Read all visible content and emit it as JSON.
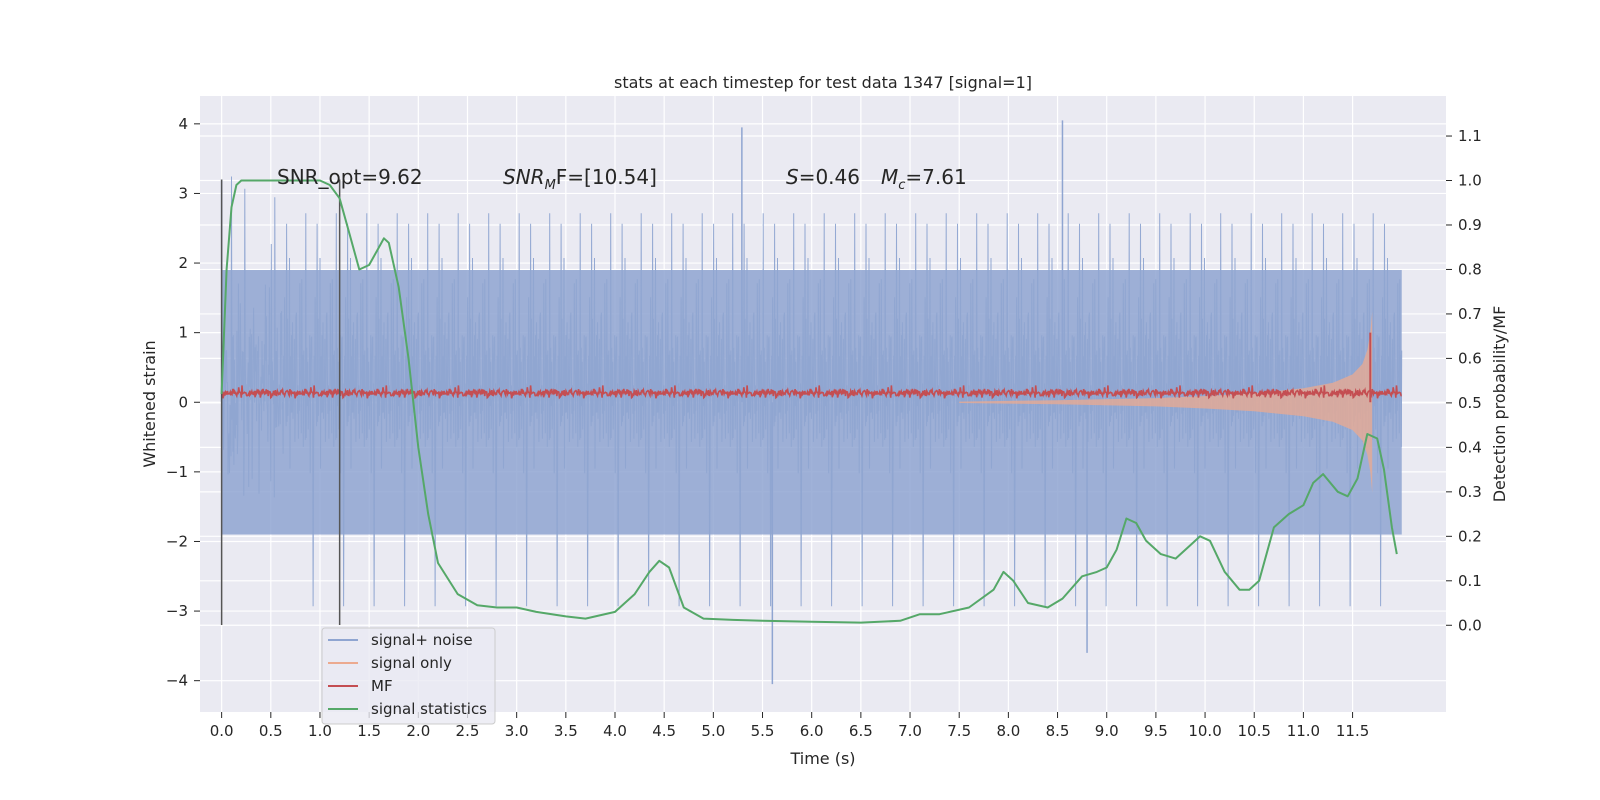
{
  "chart_data": {
    "type": "line",
    "title": "stats at each timestep for test data 1347 [signal=1]",
    "xlabel": "Time (s)",
    "ylabel_left": "Whitened strain",
    "ylabel_right": "Detection probability/MF",
    "xlim": [
      -0.22,
      12.45
    ],
    "ylim_left": [
      -4.45,
      4.4
    ],
    "ylim_right": [
      -0.195,
      1.19
    ],
    "x_ticks": [
      "0.0",
      "0.5",
      "1.0",
      "1.5",
      "2.0",
      "2.5",
      "3.0",
      "3.5",
      "4.0",
      "4.5",
      "5.0",
      "5.5",
      "6.0",
      "6.5",
      "7.0",
      "7.5",
      "8.0",
      "8.5",
      "9.0",
      "9.5",
      "10.0",
      "10.5",
      "11.0",
      "11.5"
    ],
    "y_left_ticks": [
      "4",
      "3",
      "2",
      "1",
      "0",
      "−1",
      "−2",
      "−3",
      "−4"
    ],
    "y_right_ticks": [
      "1.1",
      "1.0",
      "0.9",
      "0.8",
      "0.7",
      "0.6",
      "0.5",
      "0.4",
      "0.3",
      "0.2",
      "0.1",
      "0.0"
    ],
    "grid": true,
    "legend": {
      "placement": "lower-left",
      "entries": [
        {
          "label": "signal+ noise",
          "color": "#8fa5d1"
        },
        {
          "label": "signal only",
          "color": "#ecaa8f"
        },
        {
          "label": "MF",
          "color": "#c44e52"
        },
        {
          "label": "signal statistics",
          "color": "#55a868"
        }
      ]
    },
    "annotations": {
      "snr_opt": "SNR_opt=9.62",
      "snr_mf_base": "SNR",
      "snr_mf_sub": "M",
      "snr_mf_rest": "F=[10.54]",
      "s_base": "S",
      "s_value": "=0.46",
      "mc_base": "M",
      "mc_sub": "c",
      "mc_value": "=7.61"
    },
    "vertical_markers": [
      0.0,
      1.2
    ],
    "series": [
      {
        "name": "signal+ noise",
        "axis": "left",
        "color": "#8fa5d1",
        "x_range": [
          0.0,
          12.0
        ],
        "band": [
          -1.9,
          1.9
        ],
        "peak_examples": [
          [
            0.0,
            3.2
          ],
          [
            5.29,
            3.95
          ],
          [
            8.55,
            4.05
          ],
          [
            5.6,
            -4.05
          ],
          [
            8.8,
            -3.6
          ]
        ]
      },
      {
        "name": "signal only",
        "axis": "left",
        "color": "#ecaa8f",
        "x": [
          7.5,
          8.5,
          9.5,
          10.0,
          10.5,
          11.0,
          11.3,
          11.5,
          11.6,
          11.65,
          11.68,
          11.7
        ],
        "amplitude": [
          0.01,
          0.03,
          0.06,
          0.09,
          0.13,
          0.2,
          0.28,
          0.4,
          0.55,
          0.75,
          1.0,
          1.3
        ]
      },
      {
        "name": "MF",
        "axis": "left",
        "color": "#c44e52",
        "x_range": [
          0.0,
          12.0
        ],
        "mean": 0.12,
        "spike": [
          11.68,
          1.0
        ]
      },
      {
        "name": "signal statistics",
        "axis": "right",
        "color": "#55a868",
        "x": [
          0.0,
          0.05,
          0.1,
          0.15,
          0.2,
          0.5,
          0.8,
          1.0,
          1.1,
          1.2,
          1.3,
          1.4,
          1.5,
          1.6,
          1.65,
          1.7,
          1.8,
          1.9,
          2.0,
          2.1,
          2.2,
          2.4,
          2.6,
          2.8,
          3.0,
          3.2,
          3.5,
          3.7,
          4.0,
          4.2,
          4.35,
          4.45,
          4.55,
          4.7,
          4.9,
          5.2,
          5.5,
          6.0,
          6.5,
          6.9,
          7.1,
          7.3,
          7.6,
          7.85,
          7.95,
          8.05,
          8.2,
          8.4,
          8.55,
          8.75,
          8.9,
          9.0,
          9.1,
          9.2,
          9.3,
          9.4,
          9.55,
          9.7,
          9.85,
          9.95,
          10.05,
          10.2,
          10.35,
          10.45,
          10.55,
          10.7,
          10.85,
          11.0,
          11.1,
          11.2,
          11.35,
          11.45,
          11.55,
          11.65,
          11.75,
          11.82,
          11.9,
          11.95
        ],
        "y": [
          0.52,
          0.8,
          0.94,
          0.99,
          1.0,
          1.0,
          1.0,
          1.0,
          0.99,
          0.96,
          0.88,
          0.8,
          0.81,
          0.85,
          0.87,
          0.86,
          0.76,
          0.6,
          0.4,
          0.25,
          0.14,
          0.07,
          0.045,
          0.04,
          0.04,
          0.03,
          0.02,
          0.015,
          0.03,
          0.07,
          0.12,
          0.145,
          0.13,
          0.04,
          0.015,
          0.012,
          0.01,
          0.008,
          0.006,
          0.01,
          0.025,
          0.025,
          0.04,
          0.08,
          0.12,
          0.1,
          0.05,
          0.04,
          0.06,
          0.11,
          0.12,
          0.13,
          0.17,
          0.24,
          0.23,
          0.19,
          0.16,
          0.15,
          0.18,
          0.2,
          0.19,
          0.12,
          0.08,
          0.08,
          0.1,
          0.22,
          0.25,
          0.27,
          0.32,
          0.34,
          0.3,
          0.29,
          0.33,
          0.43,
          0.42,
          0.35,
          0.22,
          0.16
        ]
      }
    ]
  }
}
